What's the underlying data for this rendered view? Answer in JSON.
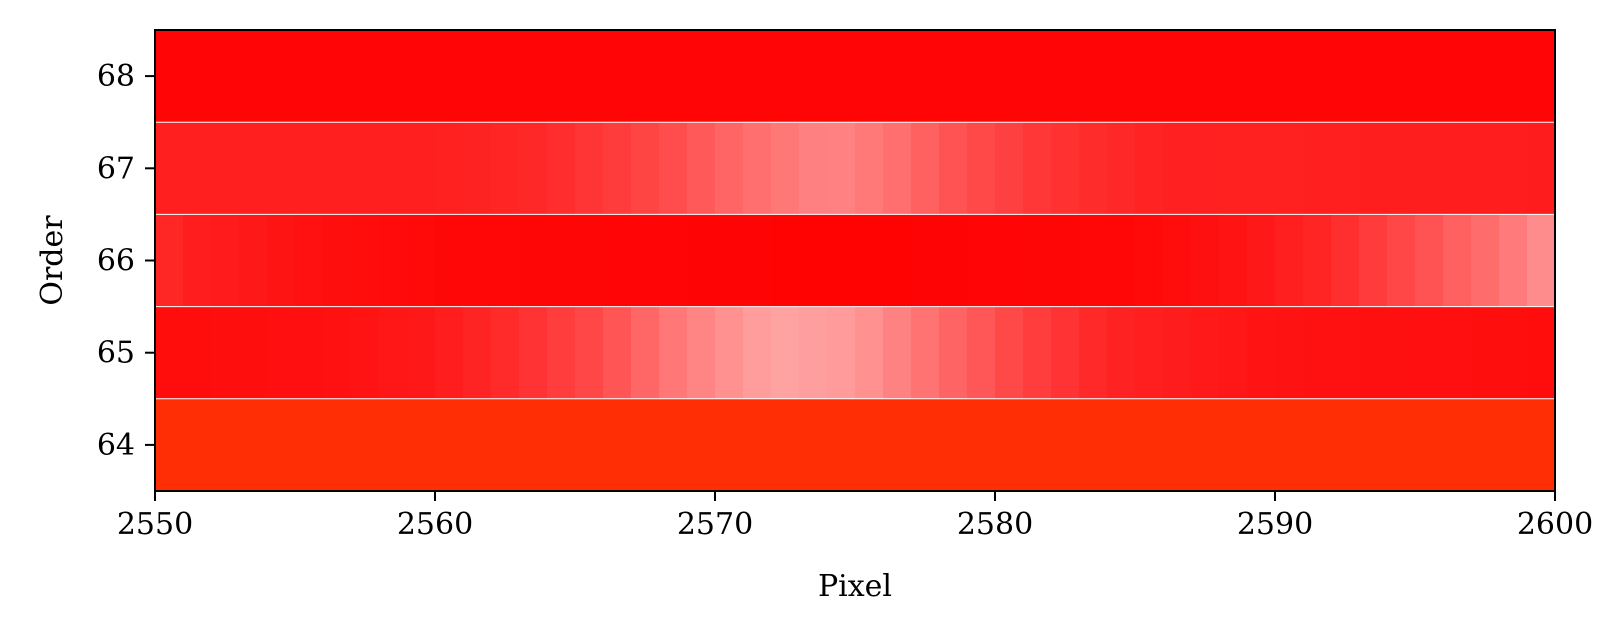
{
  "chart_data": {
    "type": "heatmap",
    "title": "",
    "xlabel": "Pixel",
    "ylabel": "Order",
    "xlim": [
      2550,
      2600
    ],
    "ylim": [
      63.5,
      68.5
    ],
    "x_ticks": [
      2550,
      2560,
      2570,
      2580,
      2590,
      2600
    ],
    "y_ticks": [
      64,
      65,
      66,
      67,
      68
    ],
    "grid": false,
    "colormap": {
      "low": "#ff0000",
      "high": "#ffffff",
      "vmin": 0,
      "vmax": 1
    },
    "rows": [
      {
        "order": 68,
        "base_color": "#ff0000",
        "profile": [
          [
            2550,
            0.02
          ],
          [
            2575,
            0.02
          ],
          [
            2600,
            0.02
          ]
        ]
      },
      {
        "order": 67,
        "base_color": "#ff0000",
        "profile": [
          [
            2550,
            0.12
          ],
          [
            2560,
            0.12
          ],
          [
            2564,
            0.16
          ],
          [
            2568,
            0.28
          ],
          [
            2571,
            0.42
          ],
          [
            2574,
            0.52
          ],
          [
            2576,
            0.46
          ],
          [
            2579,
            0.3
          ],
          [
            2582,
            0.2
          ],
          [
            2586,
            0.13
          ],
          [
            2600,
            0.11
          ]
        ]
      },
      {
        "order": 66,
        "base_color": "#ff0000",
        "profile": [
          [
            2550,
            0.18
          ],
          [
            2551,
            0.12
          ],
          [
            2553,
            0.1
          ],
          [
            2556,
            0.06
          ],
          [
            2560,
            0.03
          ],
          [
            2575,
            0.01
          ],
          [
            2585,
            0.03
          ],
          [
            2589,
            0.08
          ],
          [
            2592,
            0.16
          ],
          [
            2595,
            0.3
          ],
          [
            2598,
            0.45
          ],
          [
            2600,
            0.58
          ]
        ]
      },
      {
        "order": 65,
        "base_color": "#ff0000",
        "profile": [
          [
            2550,
            0.05
          ],
          [
            2556,
            0.06
          ],
          [
            2560,
            0.1
          ],
          [
            2563,
            0.18
          ],
          [
            2566,
            0.3
          ],
          [
            2569,
            0.5
          ],
          [
            2572,
            0.64
          ],
          [
            2575,
            0.6
          ],
          [
            2578,
            0.42
          ],
          [
            2581,
            0.26
          ],
          [
            2584,
            0.14
          ],
          [
            2590,
            0.07
          ],
          [
            2600,
            0.05
          ]
        ]
      },
      {
        "order": 64,
        "base_color": "#ff2a00",
        "profile": [
          [
            2550,
            0.02
          ],
          [
            2600,
            0.02
          ]
        ]
      }
    ]
  }
}
